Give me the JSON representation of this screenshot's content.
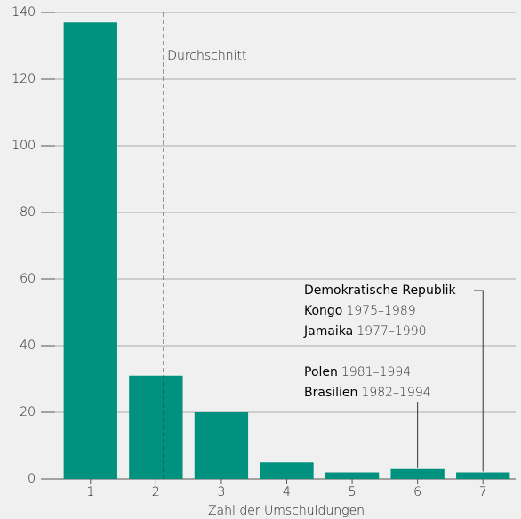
{
  "chart_data": {
    "type": "bar",
    "x_label": "Zahl der Umschuldungen",
    "categories": [
      "1",
      "2",
      "3",
      "4",
      "5",
      "6",
      "7"
    ],
    "values": [
      137,
      31,
      20,
      5,
      2,
      3,
      2
    ],
    "color": "#00917f",
    "ylim": [
      0,
      140
    ],
    "yticks": [
      0,
      20,
      40,
      60,
      80,
      100,
      120,
      140
    ],
    "grid": true,
    "average": {
      "label": "Durchschnitt",
      "x": 2.12
    },
    "annotations": [
      {
        "category": "7",
        "lines": [
          [
            "Demokratische Republik"
          ],
          [
            "Kongo",
            "1975–1989"
          ],
          [
            "Jamaika",
            "1977–1990"
          ]
        ]
      },
      {
        "category": "6",
        "lines": [
          [
            "Polen",
            "1981–1994"
          ],
          [
            "Brasilien",
            "1982–1994"
          ]
        ]
      }
    ]
  }
}
